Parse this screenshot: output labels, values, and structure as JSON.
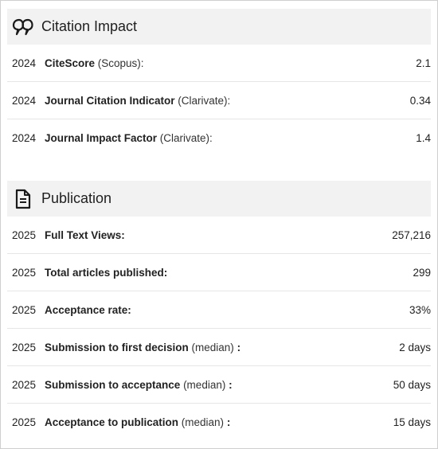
{
  "citation_impact": {
    "title": "Citation Impact",
    "icon": "quote-icon",
    "rows": [
      {
        "year": "2024",
        "label": "CiteScore",
        "qualifier": " (Scopus):",
        "suffix": "",
        "value": "2.1"
      },
      {
        "year": "2024",
        "label": "Journal Citation Indicator",
        "qualifier": " (Clarivate):",
        "suffix": "",
        "value": "0.34"
      },
      {
        "year": "2024",
        "label": "Journal Impact Factor",
        "qualifier": " (Clarivate):",
        "suffix": "",
        "value": "1.4"
      }
    ]
  },
  "publication": {
    "title": "Publication",
    "icon": "document-icon",
    "rows": [
      {
        "year": "2025",
        "label": "Full Text Views:",
        "qualifier": "",
        "suffix": "",
        "value": "257,216"
      },
      {
        "year": "2025",
        "label": "Total articles published:",
        "qualifier": "",
        "suffix": "",
        "value": "299"
      },
      {
        "year": "2025",
        "label": "Acceptance rate:",
        "qualifier": "",
        "suffix": "",
        "value": "33%"
      },
      {
        "year": "2025",
        "label": "Submission to first decision",
        "qualifier": " (median)",
        "suffix": " :",
        "value": "2 days"
      },
      {
        "year": "2025",
        "label": "Submission to acceptance",
        "qualifier": " (median)",
        "suffix": " :",
        "value": "50 days"
      },
      {
        "year": "2025",
        "label": "Acceptance to publication",
        "qualifier": " (median)",
        "suffix": " :",
        "value": "15 days"
      }
    ]
  }
}
